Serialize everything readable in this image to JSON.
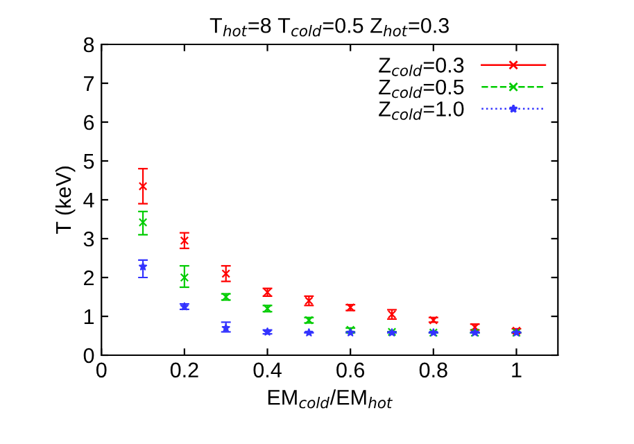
{
  "chart_data": {
    "type": "scatter",
    "title": "T$_{hot}$=8 T$_{cold}$=0.5 Z$_{hot}$=0.3",
    "xlabel": "EM$_{cold}$/EM$_{hot}$",
    "ylabel": "T (keV)",
    "x": [
      0.1,
      0.2,
      0.3,
      0.4,
      0.5,
      0.6,
      0.7,
      0.8,
      0.9,
      1.0
    ],
    "series": [
      {
        "name": "Z$_{cold}$=0.3",
        "color": "#ff0000",
        "marker": "cross",
        "line_style": "solid",
        "values": [
          4.35,
          2.95,
          2.1,
          1.62,
          1.4,
          1.23,
          1.05,
          0.9,
          0.72,
          0.63
        ],
        "errors": [
          [
            3.9,
            4.8
          ],
          [
            2.75,
            3.15
          ],
          [
            1.9,
            2.3
          ],
          [
            1.52,
            1.72
          ],
          [
            1.28,
            1.52
          ],
          [
            1.15,
            1.3
          ],
          [
            0.93,
            1.17
          ],
          [
            0.85,
            0.97
          ],
          [
            0.65,
            0.8
          ],
          [
            0.58,
            0.68
          ]
        ]
      },
      {
        "name": "Z$_{cold}$=0.5",
        "color": "#00cc00",
        "marker": "cross",
        "line_style": "dashed",
        "values": [
          3.42,
          2.0,
          1.5,
          1.2,
          0.9,
          0.65,
          0.6,
          0.58,
          0.58,
          0.58
        ],
        "errors": [
          [
            3.1,
            3.7
          ],
          [
            1.75,
            2.3
          ],
          [
            1.42,
            1.58
          ],
          [
            1.12,
            1.28
          ],
          [
            0.83,
            0.97
          ],
          [
            0.6,
            0.7
          ],
          null,
          null,
          null,
          null
        ]
      },
      {
        "name": "Z$_{cold}$=1.0",
        "color": "#3333ff",
        "marker": "star",
        "line_style": "dotted",
        "values": [
          2.28,
          1.25,
          0.7,
          0.6,
          0.58,
          0.58,
          0.58,
          0.58,
          0.58,
          0.58
        ],
        "errors": [
          [
            2.0,
            2.45
          ],
          [
            1.18,
            1.32
          ],
          [
            0.6,
            0.85
          ],
          [
            0.55,
            0.65
          ],
          null,
          null,
          null,
          null,
          null,
          null
        ]
      }
    ],
    "xlim": [
      0,
      1.1
    ],
    "ylim": [
      0,
      8
    ],
    "xticks": [
      0,
      0.2,
      0.4,
      0.6,
      0.8,
      1
    ],
    "yticks": [
      0,
      1,
      2,
      3,
      4,
      5,
      6,
      7,
      8
    ],
    "grid": false,
    "legend": "top right"
  }
}
